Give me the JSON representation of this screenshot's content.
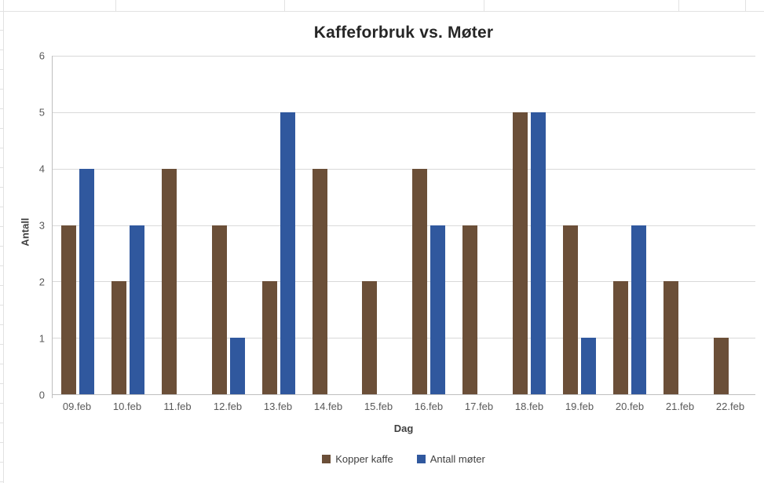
{
  "chart_data": {
    "type": "bar",
    "title": "Kaffeforbruk vs. Møter",
    "xlabel": "Dag",
    "ylabel": "Antall",
    "ylim": [
      0,
      6
    ],
    "yticks": [
      0,
      1,
      2,
      3,
      4,
      5,
      6
    ],
    "grid": true,
    "legend_position": "bottom",
    "categories": [
      "09.feb",
      "10.feb",
      "11.feb",
      "12.feb",
      "13.feb",
      "14.feb",
      "15.feb",
      "16.feb",
      "17.feb",
      "18.feb",
      "19.feb",
      "20.feb",
      "21.feb",
      "22.feb"
    ],
    "series": [
      {
        "name": "Kopper kaffe",
        "color": "#6B4F38",
        "values": [
          3,
          2,
          4,
          3,
          2,
          4,
          2,
          4,
          3,
          5,
          3,
          2,
          2,
          1
        ]
      },
      {
        "name": "Antall møter",
        "color": "#30589E",
        "values": [
          4,
          3,
          0,
          1,
          5,
          0,
          0,
          3,
          0,
          5,
          1,
          3,
          0,
          0
        ]
      }
    ]
  },
  "colors": {
    "gridline": "#D9D9D9",
    "axis_line": "#BFBFBF",
    "title_text": "#262626",
    "tick_text": "#595959",
    "axis_title_text": "#404040",
    "sheet_line": "#E2E2E2",
    "background": "#FFFFFF"
  }
}
